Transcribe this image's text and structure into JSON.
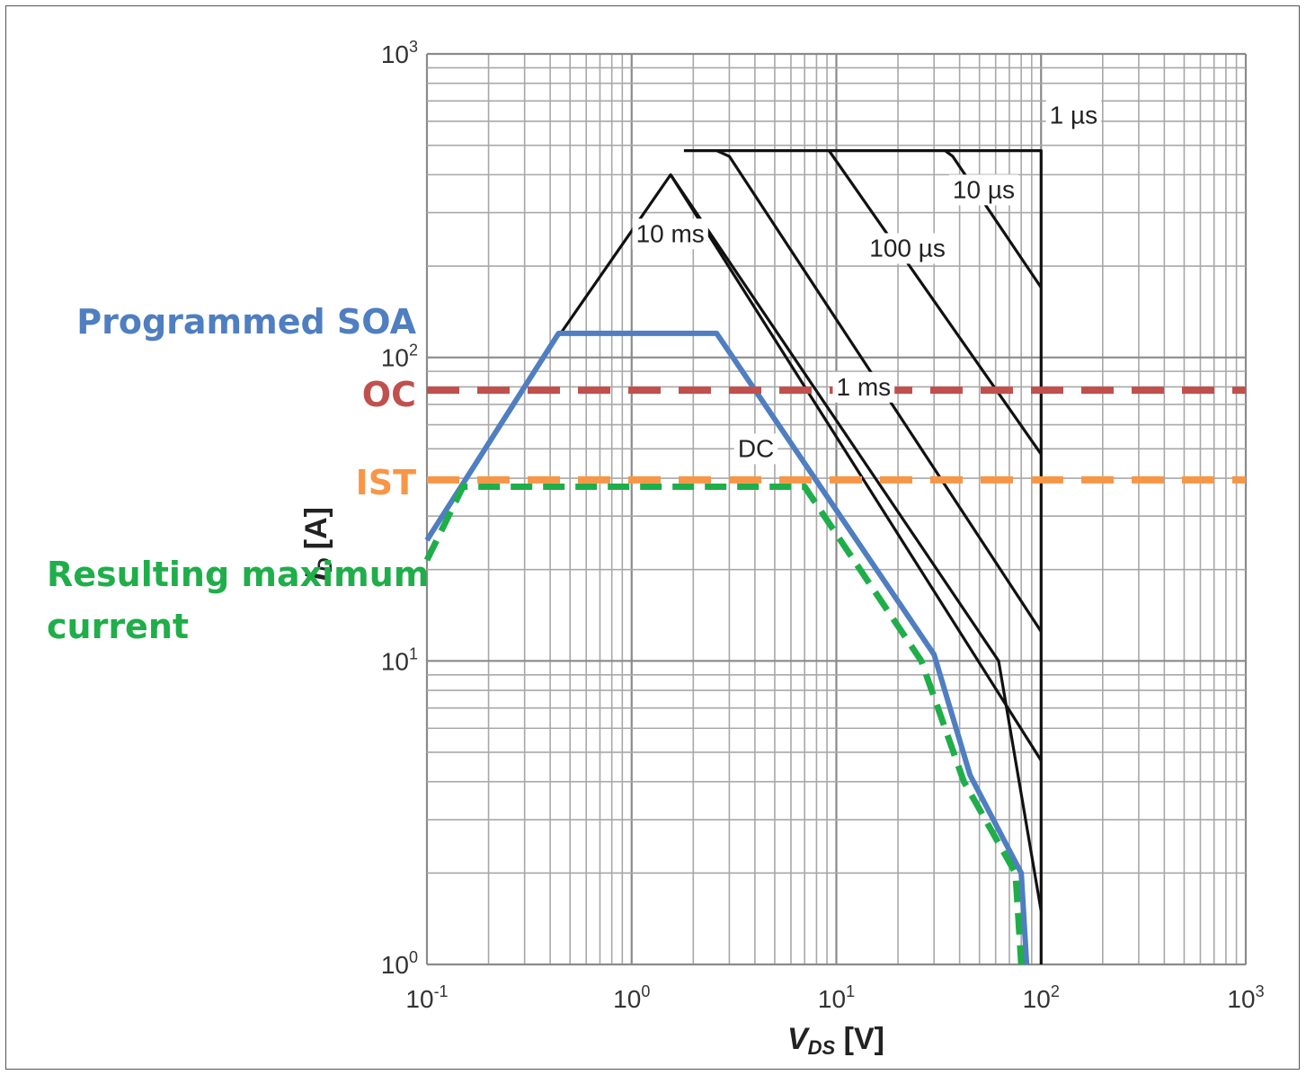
{
  "chart_data": {
    "type": "line",
    "x_scale": "log",
    "y_scale": "log",
    "xlim": [
      0.1,
      1000
    ],
    "ylim": [
      1,
      1000
    ],
    "grid": true,
    "xlabel": {
      "main": "V",
      "sub": "DS",
      "unit": " [V]"
    },
    "ylabel": {
      "main": "I",
      "sub": "D",
      "unit": " [A]"
    },
    "x_ticks": [
      {
        "base": "10",
        "exp": "-1",
        "value": 0.1
      },
      {
        "base": "10",
        "exp": "0",
        "value": 1
      },
      {
        "base": "10",
        "exp": "1",
        "value": 10
      },
      {
        "base": "10",
        "exp": "2",
        "value": 100
      },
      {
        "base": "10",
        "exp": "3",
        "value": 1000
      }
    ],
    "y_ticks": [
      {
        "base": "10",
        "exp": "0",
        "value": 1
      },
      {
        "base": "10",
        "exp": "1",
        "value": 10
      },
      {
        "base": "10",
        "exp": "2",
        "value": 100
      },
      {
        "base": "10",
        "exp": "3",
        "value": 1000
      }
    ],
    "series": [
      {
        "name": "1 µs",
        "color": "#111111",
        "points": [
          [
            1.8,
            480
          ],
          [
            100,
            480
          ],
          [
            100,
            1
          ]
        ]
      },
      {
        "name": "10 µs",
        "color": "#111111",
        "points": [
          [
            34,
            480
          ],
          [
            37,
            460
          ],
          [
            100,
            170
          ]
        ]
      },
      {
        "name": "100 µs",
        "color": "#111111",
        "points": [
          [
            9.2,
            480
          ],
          [
            100,
            48
          ]
        ]
      },
      {
        "name": "1 ms",
        "color": "#111111",
        "points": [
          [
            2.6,
            480
          ],
          [
            3.0,
            460
          ],
          [
            100,
            12.5
          ]
        ]
      },
      {
        "name": "10 ms",
        "color": "#111111",
        "points": [
          [
            1.55,
            400
          ],
          [
            100,
            4.7
          ]
        ]
      },
      {
        "name": "DC",
        "color": "#111111",
        "points": [
          [
            0.45,
            120
          ],
          [
            1.55,
            400
          ],
          [
            62,
            10
          ],
          [
            100,
            1.5
          ]
        ]
      },
      {
        "name": "Programmed SOA",
        "color": "#4f7ec1",
        "points": [
          [
            0.1,
            25
          ],
          [
            0.44,
            120
          ],
          [
            2.6,
            120
          ],
          [
            30,
            10.5
          ],
          [
            45,
            4.2
          ],
          [
            80,
            2
          ],
          [
            85,
            1
          ]
        ]
      },
      {
        "name": "OC",
        "color": "#c0504d",
        "points": [
          [
            0.1,
            78
          ],
          [
            1000,
            78
          ]
        ]
      },
      {
        "name": "IST",
        "color": "#f79646",
        "points": [
          [
            0.1,
            39.5
          ],
          [
            1000,
            39.5
          ]
        ]
      },
      {
        "name": "Resulting maximum current",
        "color": "#1fae4a",
        "points": [
          [
            0.1,
            21.5
          ],
          [
            0.15,
            37.5
          ],
          [
            7,
            37.5
          ],
          [
            26,
            10
          ],
          [
            42,
            4
          ],
          [
            75,
            2
          ],
          [
            80,
            1
          ]
        ]
      }
    ],
    "curve_labels": [
      {
        "text": "1 µs",
        "x": 110,
        "y": 590
      },
      {
        "text": "10 µs",
        "x": 37,
        "y": 335
      },
      {
        "text": "100 µs",
        "x": 14.5,
        "y": 215
      },
      {
        "text": "1 ms",
        "x": 10,
        "y": 75
      },
      {
        "text": "10 ms",
        "x": 1.05,
        "y": 240
      },
      {
        "text": "DC",
        "x": 3.3,
        "y": 47
      }
    ],
    "annotations": [
      {
        "id": "programmed-soa",
        "text": "Programmed SOA",
        "color": "#4f7ec1"
      },
      {
        "id": "oc",
        "text": "OC",
        "color": "#c0504d"
      },
      {
        "id": "ist",
        "text": "IST",
        "color": "#f79646"
      },
      {
        "id": "result-line1",
        "text": "Resulting maximum",
        "color": "#1fae4a"
      },
      {
        "id": "result-line2",
        "text": "current",
        "color": "#1fae4a"
      }
    ]
  }
}
